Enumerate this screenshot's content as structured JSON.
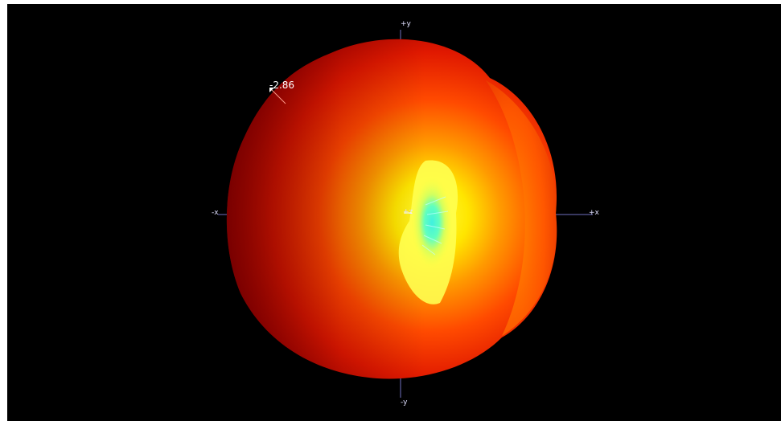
{
  "viewer": {
    "background": "#000000",
    "axis_color": "#7070c0",
    "colormap": [
      "#8a0000",
      "#e01000",
      "#ff5a00",
      "#ffd000",
      "#ffff40",
      "#40ffe0"
    ]
  },
  "axes": {
    "plus_y": "+y",
    "minus_y": "-y",
    "plus_x": "+x",
    "minus_x": "-x",
    "plus_z": "+z"
  },
  "probe": {
    "value": "-2.86"
  }
}
